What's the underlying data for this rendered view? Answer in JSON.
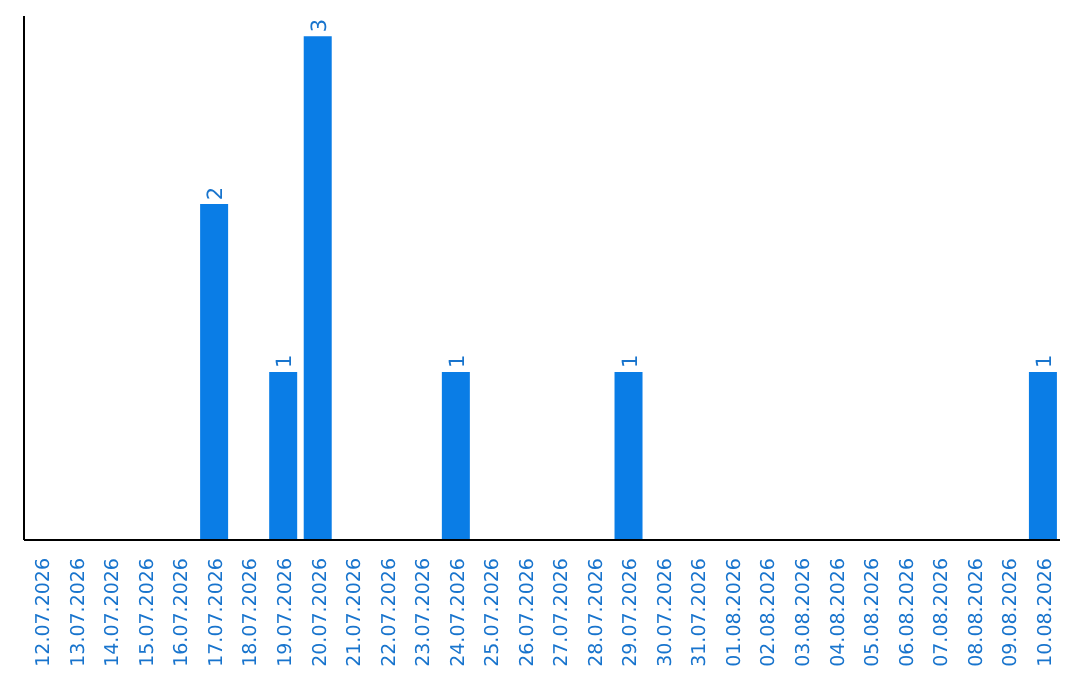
{
  "chart_data": {
    "type": "bar",
    "categories": [
      "12.07.2026",
      "13.07.2026",
      "14.07.2026",
      "15.07.2026",
      "16.07.2026",
      "17.07.2026",
      "18.07.2026",
      "19.07.2026",
      "20.07.2026",
      "21.07.2026",
      "22.07.2026",
      "23.07.2026",
      "24.07.2026",
      "25.07.2026",
      "26.07.2026",
      "27.07.2026",
      "28.07.2026",
      "29.07.2026",
      "30.07.2026",
      "31.07.2026",
      "01.08.2026",
      "02.08.2026",
      "03.08.2026",
      "04.08.2026",
      "05.08.2026",
      "06.08.2026",
      "07.08.2026",
      "08.08.2026",
      "09.08.2026",
      "10.08.2026"
    ],
    "values": [
      0,
      0,
      0,
      0,
      0,
      2,
      0,
      1,
      3,
      0,
      0,
      0,
      1,
      0,
      0,
      0,
      0,
      1,
      0,
      0,
      0,
      0,
      0,
      0,
      0,
      0,
      0,
      0,
      0,
      1
    ],
    "value_labels": [
      null,
      null,
      null,
      null,
      null,
      "2",
      null,
      "1",
      "3",
      null,
      null,
      null,
      "1",
      null,
      null,
      null,
      null,
      "1",
      null,
      null,
      null,
      null,
      null,
      null,
      null,
      null,
      null,
      null,
      null,
      "1"
    ],
    "color": "#0a7de6",
    "grid": false,
    "legend": false,
    "tick_labels": "x"
  }
}
